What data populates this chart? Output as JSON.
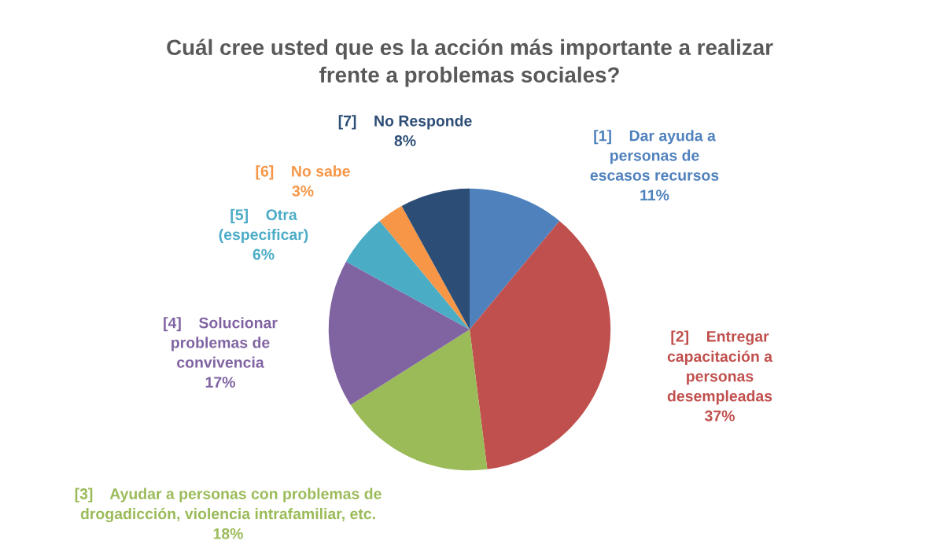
{
  "chart_data": {
    "type": "pie",
    "title": "Cuál cree usted que es la acción más importante a realizar\nfrente a problemas sociales?",
    "categories": [
      "[1]    Dar ayuda a\npersonas de\nescasos recursos",
      "[2]    Entregar\ncapacitación a\npersonas\ndesempleadas",
      "[3]    Ayudar a personas con problemas de\ndrogadicción, violencia intrafamiliar, etc.",
      "[4]    Solucionar\nproblemas de\nconvivencia",
      "[5]    Otra\n(especificar)",
      "[6]    No sabe",
      "[7]    No Responde"
    ],
    "values": [
      11,
      37,
      18,
      17,
      6,
      3,
      8
    ],
    "value_labels": [
      "11%",
      "37%",
      "18%",
      "17%",
      "6%",
      "3%",
      "8%"
    ],
    "colors": [
      "#4f81bd",
      "#c0504d",
      "#9bbb59",
      "#8064a2",
      "#4bacc6",
      "#f79646",
      "#2c4d75"
    ],
    "legend": false
  }
}
